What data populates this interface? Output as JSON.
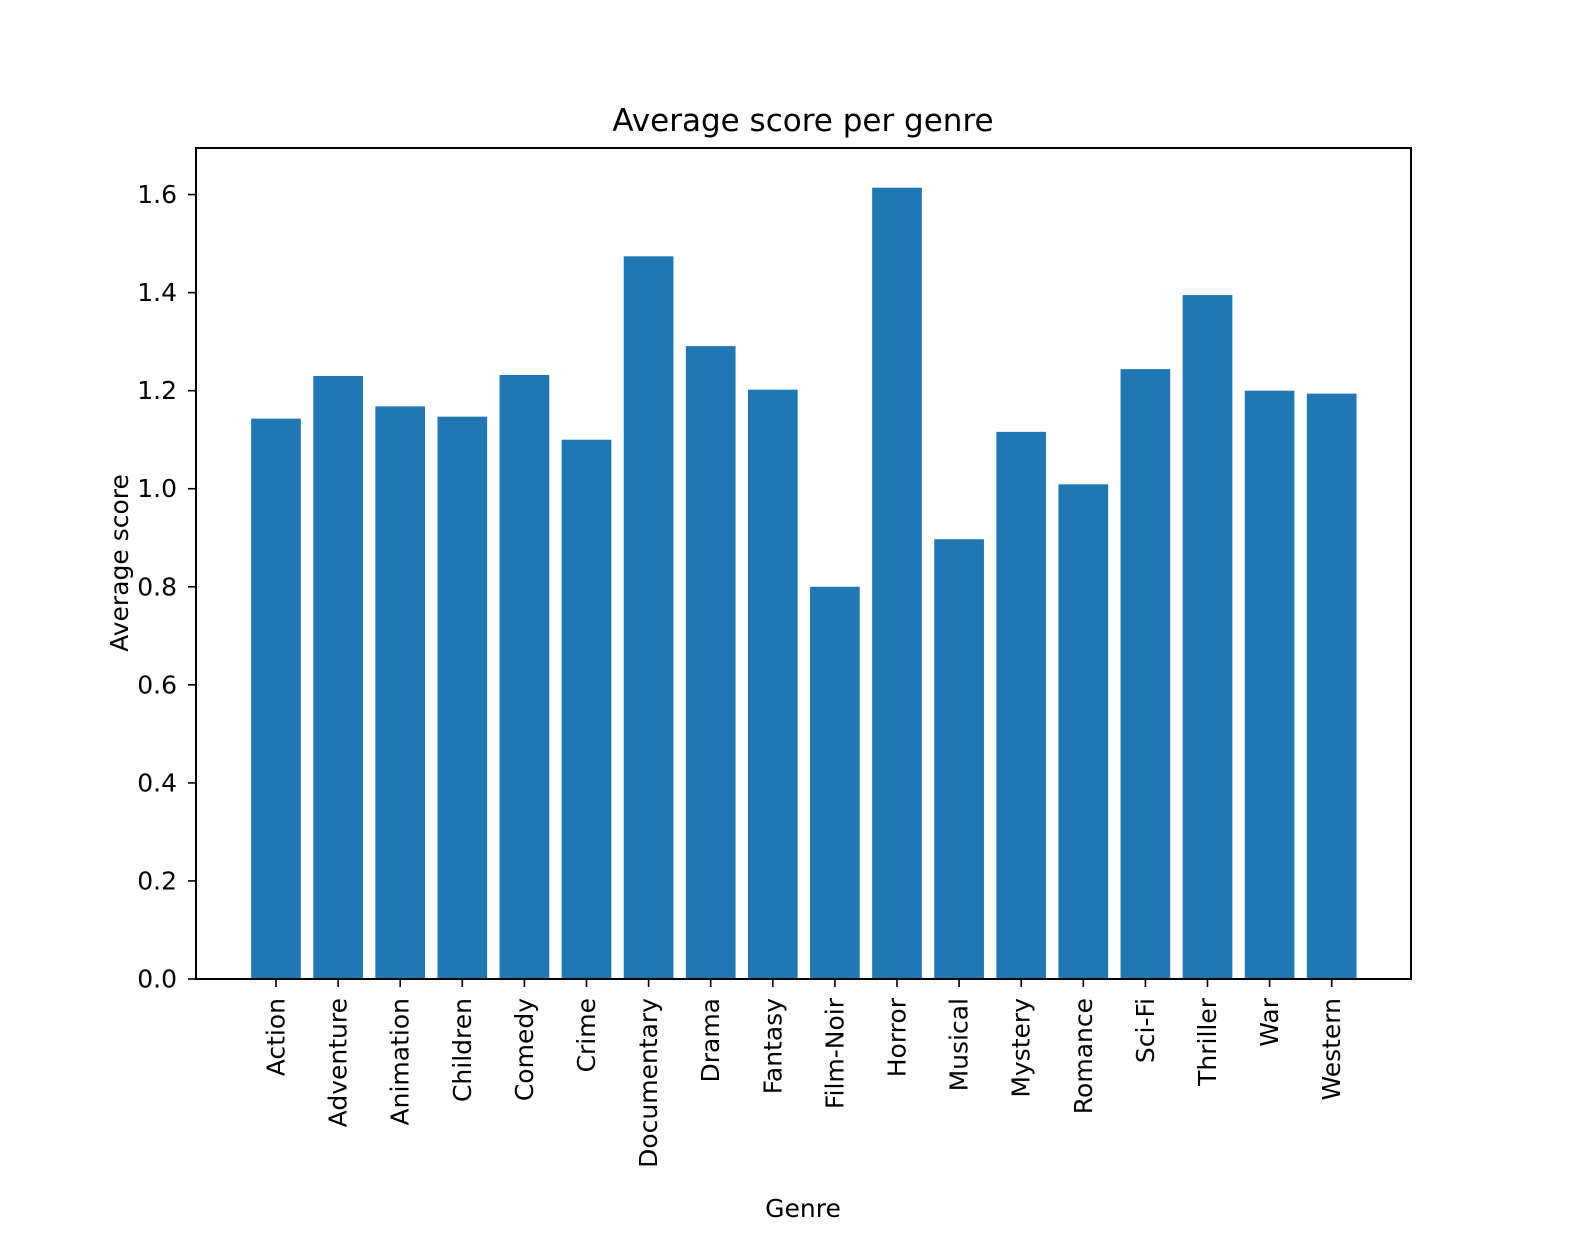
{
  "chart_data": {
    "type": "bar",
    "title": "Average score per genre",
    "xlabel": "Genre",
    "ylabel": "Average score",
    "categories": [
      "Action",
      "Adventure",
      "Animation",
      "Children",
      "Comedy",
      "Crime",
      "Documentary",
      "Drama",
      "Fantasy",
      "Film-Noir",
      "Horror",
      "Musical",
      "Mystery",
      "Romance",
      "Sci-Fi",
      "Thriller",
      "War",
      "Western"
    ],
    "values": [
      1.143,
      1.23,
      1.168,
      1.147,
      1.232,
      1.1,
      1.474,
      1.291,
      1.202,
      0.8,
      1.614,
      0.897,
      1.116,
      1.009,
      1.244,
      1.395,
      1.2,
      1.194
    ],
    "ylim": [
      0,
      1.695
    ],
    "yticks": [
      "0.0",
      "0.2",
      "0.4",
      "0.6",
      "0.8",
      "1.0",
      "1.2",
      "1.4",
      "1.6"
    ],
    "grid": false,
    "bar_color": "#1f77b4"
  }
}
